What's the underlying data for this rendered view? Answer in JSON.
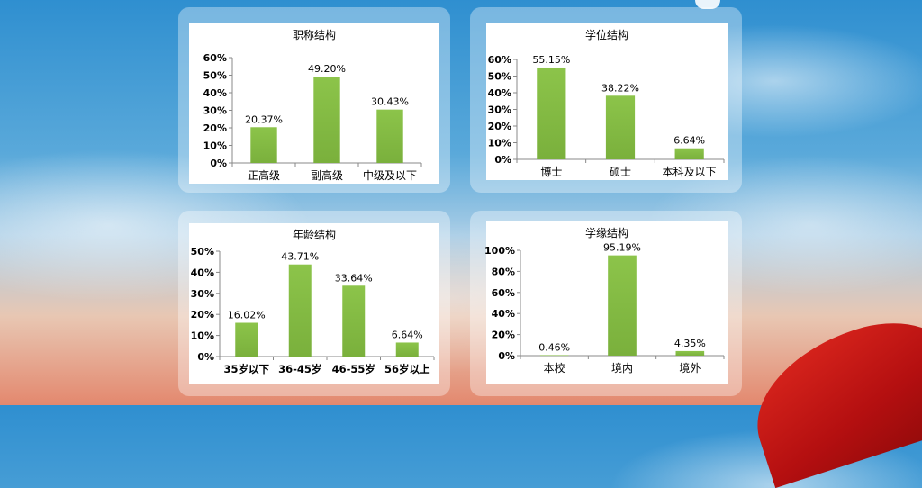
{
  "chart_data": [
    {
      "type": "bar",
      "title": "职称结构",
      "categories": [
        "正高级",
        "副高级",
        "中级及以下"
      ],
      "values": [
        20.37,
        49.2,
        30.43
      ],
      "value_labels": [
        "20.37%",
        "49.20%",
        "30.43%"
      ],
      "yticks": [
        "0%",
        "10%",
        "20%",
        "30%",
        "40%",
        "50%",
        "60%"
      ],
      "ylim": [
        0,
        60
      ],
      "xlabel": "",
      "ylabel": "",
      "grid": false,
      "bar_color": "#7ab03c"
    },
    {
      "type": "bar",
      "title": "学位结构",
      "categories": [
        "博士",
        "硕士",
        "本科及以下"
      ],
      "values": [
        55.15,
        38.22,
        6.64
      ],
      "value_labels": [
        "55.15%",
        "38.22%",
        "6.64%"
      ],
      "yticks": [
        "0%",
        "10%",
        "20%",
        "30%",
        "40%",
        "50%",
        "60%"
      ],
      "ylim": [
        0,
        60
      ],
      "xlabel": "",
      "ylabel": "",
      "grid": false,
      "bar_color": "#7ab03c"
    },
    {
      "type": "bar",
      "title": "年龄结构",
      "categories": [
        "35岁以下",
        "36-45岁",
        "46-55岁",
        "56岁以上"
      ],
      "values": [
        16.02,
        43.71,
        33.64,
        6.64
      ],
      "value_labels": [
        "16.02%",
        "43.71%",
        "33.64%",
        "6.64%"
      ],
      "yticks": [
        "0%",
        "10%",
        "20%",
        "30%",
        "40%",
        "50%"
      ],
      "ylim": [
        0,
        50
      ],
      "xlabel": "",
      "ylabel": "",
      "grid": false,
      "bar_color": "#7ab03c"
    },
    {
      "type": "bar",
      "title": "学缘结构",
      "categories": [
        "本校",
        "境内",
        "境外"
      ],
      "values": [
        0.46,
        95.19,
        4.35
      ],
      "value_labels": [
        "0.46%",
        "95.19%",
        "4.35%"
      ],
      "yticks": [
        "0%",
        "20%",
        "40%",
        "60%",
        "80%",
        "100%"
      ],
      "ylim": [
        0,
        100
      ],
      "xlabel": "",
      "ylabel": "",
      "grid": false,
      "bar_color": "#7ab03c"
    }
  ]
}
